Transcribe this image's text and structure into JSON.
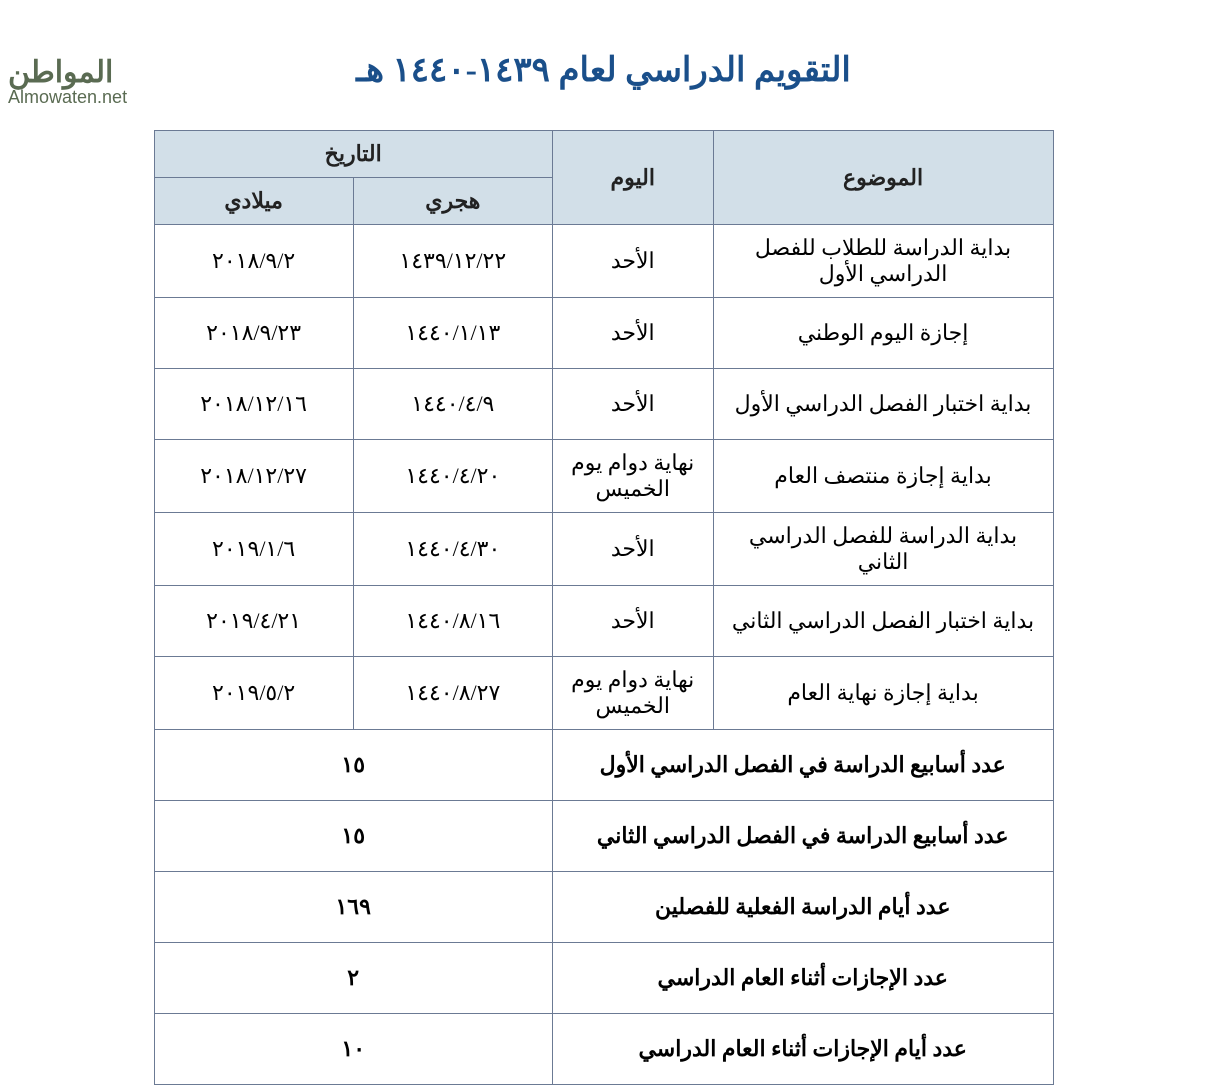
{
  "watermark": {
    "top": "المواطن",
    "bottom": "Almowaten.net"
  },
  "title": "التقويم الدراسي لعام ١٤٣٩-١٤٤٠ هـ",
  "headers": {
    "subject": "الموضوع",
    "day": "اليوم",
    "date_group": "التاريخ",
    "hijri": "هجري",
    "gregorian": "ميلادي"
  },
  "rows": [
    {
      "subject": "بداية الدراسة للطلاب للفصل الدراسي الأول",
      "day": "الأحد",
      "hijri": "١٤٣٩/١٢/٢٢",
      "greg": "٢٠١٨/٩/٢"
    },
    {
      "subject": "إجازة اليوم الوطني",
      "day": "الأحد",
      "hijri": "١٤٤٠/١/١٣",
      "greg": "٢٠١٨/٩/٢٣"
    },
    {
      "subject": "بداية اختبار الفصل الدراسي الأول",
      "day": "الأحد",
      "hijri": "١٤٤٠/٤/٩",
      "greg": "٢٠١٨/١٢/١٦"
    },
    {
      "subject": "بداية إجازة منتصف العام",
      "day": "نهاية دوام يوم الخميس",
      "hijri": "١٤٤٠/٤/٢٠",
      "greg": "٢٠١٨/١٢/٢٧"
    },
    {
      "subject": "بداية الدراسة للفصل الدراسي الثاني",
      "day": "الأحد",
      "hijri": "١٤٤٠/٤/٣٠",
      "greg": "٢٠١٩/١/٦"
    },
    {
      "subject": "بداية اختبار الفصل الدراسي الثاني",
      "day": "الأحد",
      "hijri": "١٤٤٠/٨/١٦",
      "greg": "٢٠١٩/٤/٢١"
    },
    {
      "subject": "بداية إجازة نهاية العام",
      "day": "نهاية دوام يوم الخميس",
      "hijri": "١٤٤٠/٨/٢٧",
      "greg": "٢٠١٩/٥/٢"
    }
  ],
  "summary": [
    {
      "label": "عدد أسابيع الدراسة في الفصل الدراسي الأول",
      "value": "١٥"
    },
    {
      "label": "عدد أسابيع الدراسة في الفصل الدراسي الثاني",
      "value": "١٥"
    },
    {
      "label": "عدد أيام الدراسة الفعلية للفصلين",
      "value": "١٦٩"
    },
    {
      "label": "عدد الإجازات أثناء العام الدراسي",
      "value": "٢"
    },
    {
      "label": "عدد أيام الإجازات أثناء العام الدراسي",
      "value": "١٠"
    }
  ],
  "styling": {
    "header_bg": "#d2dfe8",
    "border_color": "#6b7a94",
    "title_color": "#1a4f8a",
    "text_color": "#000000",
    "watermark_color": "#5a6b52",
    "font_family": "Traditional Arabic / Times",
    "title_fontsize_pt": 26,
    "cell_fontsize_pt": 16
  }
}
